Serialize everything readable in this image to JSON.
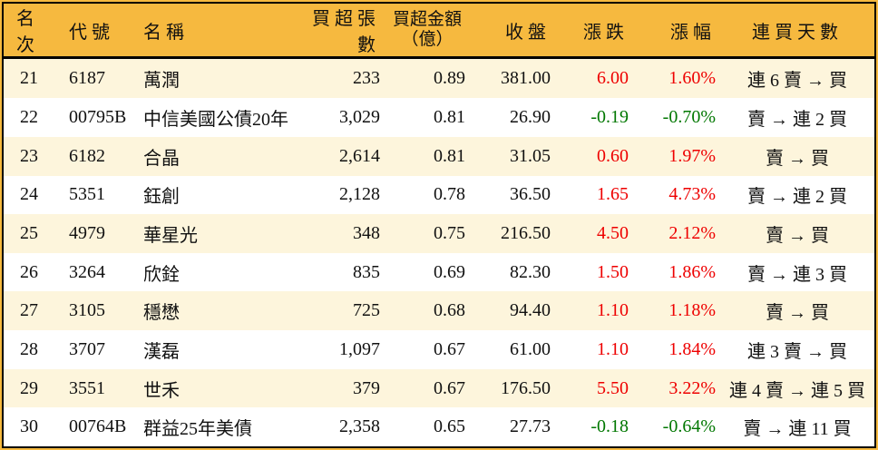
{
  "colors": {
    "header_bg": "#f6b93f",
    "frame_bg": "#f6b93f",
    "row_alt_bg": "#fdf5dc",
    "row_bg": "#ffffff",
    "up": "#ee0000",
    "down": "#007700",
    "text": "#111111",
    "border": "#000000"
  },
  "chart_data": {
    "type": "table",
    "title": "",
    "columns": [
      "名次",
      "代號",
      "名稱",
      "買超張數",
      "買超金額（億）",
      "收盤",
      "漲跌",
      "漲幅",
      "連買天數"
    ],
    "header": {
      "rank": "名次",
      "code": "代號",
      "name": "名稱",
      "buy_volume": "買超張數",
      "amt_top": "買超金額",
      "amt_bottom": "（億）",
      "close": "收盤",
      "change": "漲跌",
      "change_pct": "漲幅",
      "streak": "連買天數"
    },
    "rows": [
      {
        "rank": 21,
        "code": "6187",
        "name": "萬潤",
        "buy_volume": "233",
        "buy_amount": "0.89",
        "close": "381.00",
        "change": "6.00",
        "change_pct": "1.60%",
        "direction": "up",
        "streak": "連 6 賣 → 買"
      },
      {
        "rank": 22,
        "code": "00795B",
        "name": "中信美國公債20年",
        "buy_volume": "3,029",
        "buy_amount": "0.81",
        "close": "26.90",
        "change": "-0.19",
        "change_pct": "-0.70%",
        "direction": "down",
        "streak": "賣 → 連 2 買"
      },
      {
        "rank": 23,
        "code": "6182",
        "name": "合晶",
        "buy_volume": "2,614",
        "buy_amount": "0.81",
        "close": "31.05",
        "change": "0.60",
        "change_pct": "1.97%",
        "direction": "up",
        "streak": "賣 → 買"
      },
      {
        "rank": 24,
        "code": "5351",
        "name": "鈺創",
        "buy_volume": "2,128",
        "buy_amount": "0.78",
        "close": "36.50",
        "change": "1.65",
        "change_pct": "4.73%",
        "direction": "up",
        "streak": "賣 → 連 2 買"
      },
      {
        "rank": 25,
        "code": "4979",
        "name": "華星光",
        "buy_volume": "348",
        "buy_amount": "0.75",
        "close": "216.50",
        "change": "4.50",
        "change_pct": "2.12%",
        "direction": "up",
        "streak": "賣 → 買"
      },
      {
        "rank": 26,
        "code": "3264",
        "name": "欣銓",
        "buy_volume": "835",
        "buy_amount": "0.69",
        "close": "82.30",
        "change": "1.50",
        "change_pct": "1.86%",
        "direction": "up",
        "streak": "賣 → 連 3 買"
      },
      {
        "rank": 27,
        "code": "3105",
        "name": "穩懋",
        "buy_volume": "725",
        "buy_amount": "0.68",
        "close": "94.40",
        "change": "1.10",
        "change_pct": "1.18%",
        "direction": "up",
        "streak": "賣 → 買"
      },
      {
        "rank": 28,
        "code": "3707",
        "name": "漢磊",
        "buy_volume": "1,097",
        "buy_amount": "0.67",
        "close": "61.00",
        "change": "1.10",
        "change_pct": "1.84%",
        "direction": "up",
        "streak": "連 3 賣 → 買"
      },
      {
        "rank": 29,
        "code": "3551",
        "name": "世禾",
        "buy_volume": "379",
        "buy_amount": "0.67",
        "close": "176.50",
        "change": "5.50",
        "change_pct": "3.22%",
        "direction": "up",
        "streak": "連 4 賣 → 連 5 買"
      },
      {
        "rank": 30,
        "code": "00764B",
        "name": "群益25年美債",
        "buy_volume": "2,358",
        "buy_amount": "0.65",
        "close": "27.73",
        "change": "-0.18",
        "change_pct": "-0.64%",
        "direction": "down",
        "streak": "賣 → 連 11 買"
      }
    ]
  }
}
